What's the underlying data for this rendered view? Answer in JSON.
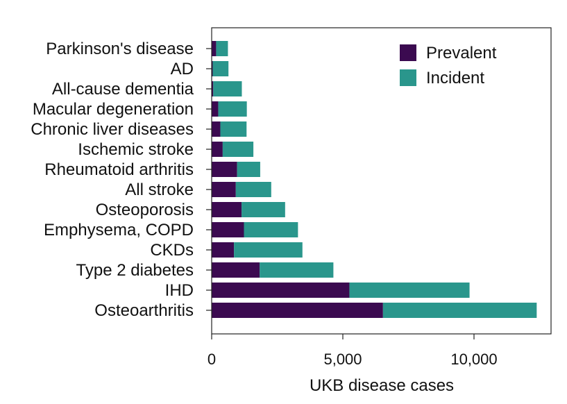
{
  "chart_data": {
    "type": "bar",
    "orientation": "horizontal",
    "stacked": true,
    "title": "",
    "xlabel": "UKB disease cases",
    "ylabel": "",
    "xlim": [
      0,
      13000
    ],
    "x_ticks": [
      0,
      5000,
      10000
    ],
    "x_tick_labels": [
      "0",
      "5,000",
      "10,000"
    ],
    "grid": false,
    "legend_position": "top-right",
    "categories": [
      "Parkinson's disease",
      "AD",
      "All-cause dementia",
      "Macular degeneration",
      "Chronic liver diseases",
      "Ischemic stroke",
      "Rheumatoid arthritis",
      "All stroke",
      "Osteoporosis",
      "Emphysema, COPD",
      "CKDs",
      "Type 2 diabetes",
      "IHD",
      "Osteoarthritis"
    ],
    "series": [
      {
        "name": "Prevalent",
        "color": "#3b0a50",
        "values": [
          170,
          40,
          60,
          250,
          330,
          420,
          970,
          920,
          1140,
          1230,
          850,
          1830,
          5250,
          6530
        ]
      },
      {
        "name": "Incident",
        "color": "#2a968c",
        "values": [
          450,
          600,
          1090,
          1090,
          1000,
          1170,
          880,
          1350,
          1660,
          2060,
          2610,
          2810,
          4580,
          5860
        ]
      }
    ]
  }
}
